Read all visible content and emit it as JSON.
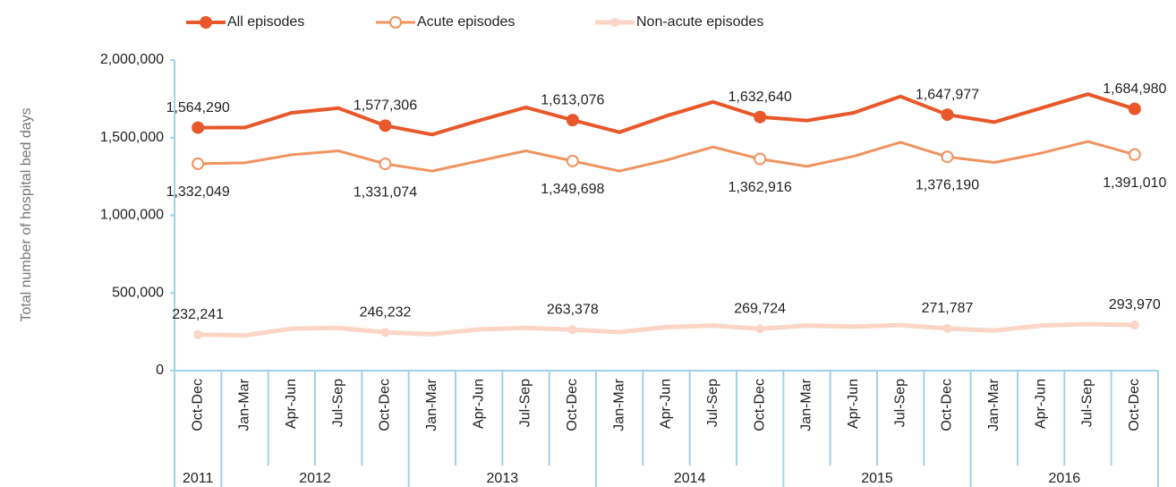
{
  "chart_data": {
    "type": "line",
    "y_label": "Total number of hospital bed days",
    "categories": [
      "Oct-Dec",
      "Jan-Mar",
      "Apr-Jun",
      "Jul-Sep",
      "Oct-Dec",
      "Jan-Mar",
      "Apr-Jun",
      "Jul-Sep",
      "Oct-Dec",
      "Jan-Mar",
      "Apr-Jun",
      "Jul-Sep",
      "Oct-Dec",
      "Jan-Mar",
      "Apr-Jun",
      "Jul-Sep",
      "Oct-Dec",
      "Jan-Mar",
      "Apr-Jun",
      "Jul-Sep",
      "Oct-Dec"
    ],
    "x_groups": [
      {
        "label": "2011",
        "span": 1
      },
      {
        "label": "2012",
        "span": 4
      },
      {
        "label": "2013",
        "span": 4
      },
      {
        "label": "2014",
        "span": 4
      },
      {
        "label": "2015",
        "span": 4
      },
      {
        "label": "2016",
        "span": 4
      }
    ],
    "ylim": [
      0,
      2000000
    ],
    "yticks": [
      0,
      {
        "value": 500000,
        "label": "500,000"
      },
      {
        "value": 1000000,
        "label": "1,000,000"
      },
      {
        "value": 1500000,
        "label": "1,500,000"
      },
      {
        "value": 2000000,
        "label": "2,000,000"
      }
    ],
    "series": [
      {
        "name": "All episodes",
        "color": "#e8582a",
        "values": [
          1564290,
          1565000,
          1660000,
          1690000,
          1577306,
          1520000,
          1610000,
          1695000,
          1613076,
          1535000,
          1640000,
          1730000,
          1632640,
          1610000,
          1660000,
          1765000,
          1647977,
          1600000,
          1690000,
          1780000,
          1684980
        ],
        "value_labels": [
          "1,564,290",
          null,
          null,
          null,
          "1,577,306",
          null,
          null,
          null,
          "1,613,076",
          null,
          null,
          null,
          "1,632,640",
          null,
          null,
          null,
          "1,647,977",
          null,
          null,
          null,
          "1,684,980"
        ]
      },
      {
        "name": "Acute episodes",
        "color": "#f0935e",
        "values": [
          1332049,
          1338000,
          1390000,
          1415000,
          1331074,
          1285000,
          1350000,
          1415000,
          1349698,
          1285000,
          1355000,
          1440000,
          1362916,
          1315000,
          1380000,
          1470000,
          1376190,
          1340000,
          1400000,
          1475000,
          1391010
        ],
        "value_labels": [
          "1,332,049",
          null,
          null,
          null,
          "1,331,074",
          null,
          null,
          null,
          "1,349,698",
          null,
          null,
          null,
          "1,362,916",
          null,
          null,
          null,
          "1,376,190",
          null,
          null,
          null,
          "1,391,010"
        ]
      },
      {
        "name": "Non-acute episodes",
        "color": "#fbd5c5",
        "values": [
          232241,
          227000,
          270000,
          275000,
          246232,
          235000,
          265000,
          275000,
          263378,
          248000,
          280000,
          290000,
          269724,
          290000,
          283000,
          293000,
          271787,
          258000,
          290000,
          300000,
          293970
        ],
        "value_labels": [
          "232,241",
          null,
          null,
          null,
          "246,232",
          null,
          null,
          null,
          "263,378",
          null,
          null,
          null,
          "269,724",
          null,
          null,
          null,
          "271,787",
          null,
          null,
          null,
          "293,970"
        ]
      }
    ]
  }
}
